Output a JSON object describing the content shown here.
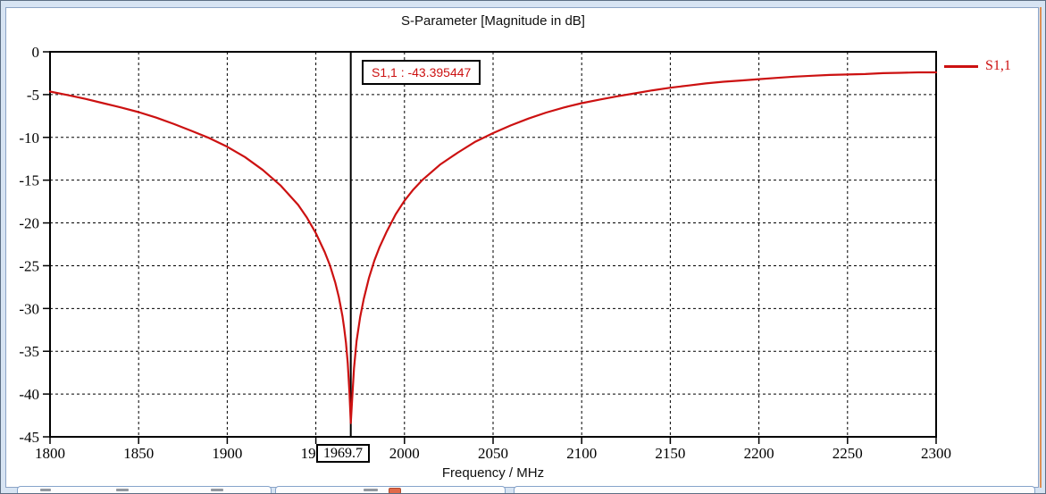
{
  "chart_data": {
    "type": "line",
    "title": "S-Parameter [Magnitude in dB]",
    "xlabel": "Frequency / MHz",
    "ylabel": "",
    "xlim": [
      1800,
      2300
    ],
    "ylim": [
      -45,
      0
    ],
    "grid": true,
    "legend_position": "right",
    "x_ticks": [
      "1800",
      "1850",
      "1900",
      "1950",
      "2000",
      "2050",
      "2100",
      "2150",
      "2200",
      "2250",
      "2300"
    ],
    "y_ticks": [
      "0",
      "-5",
      "-10",
      "-15",
      "-20",
      "-25",
      "-30",
      "-35",
      "-40",
      "-45"
    ],
    "series": [
      {
        "name": "S1,1",
        "color": "#cc1111",
        "points": [
          [
            1800,
            -4.65
          ],
          [
            1810,
            -5.05
          ],
          [
            1820,
            -5.5
          ],
          [
            1830,
            -6.0
          ],
          [
            1840,
            -6.5
          ],
          [
            1850,
            -7.05
          ],
          [
            1860,
            -7.7
          ],
          [
            1870,
            -8.45
          ],
          [
            1880,
            -9.25
          ],
          [
            1890,
            -10.1
          ],
          [
            1900,
            -11.1
          ],
          [
            1910,
            -12.3
          ],
          [
            1920,
            -13.8
          ],
          [
            1930,
            -15.6
          ],
          [
            1940,
            -17.9
          ],
          [
            1945,
            -19.4
          ],
          [
            1950,
            -21.2
          ],
          [
            1955,
            -23.4
          ],
          [
            1958,
            -25.0
          ],
          [
            1961,
            -27.0
          ],
          [
            1963,
            -28.7
          ],
          [
            1965,
            -30.9
          ],
          [
            1966,
            -32.3
          ],
          [
            1967,
            -34.0
          ],
          [
            1968,
            -36.4
          ],
          [
            1969,
            -40.0
          ],
          [
            1969.7,
            -43.395447
          ],
          [
            1970.5,
            -40.5
          ],
          [
            1971.5,
            -37.0
          ],
          [
            1973,
            -33.8
          ],
          [
            1975,
            -31.0
          ],
          [
            1977,
            -28.9
          ],
          [
            1980,
            -26.4
          ],
          [
            1983,
            -24.4
          ],
          [
            1986,
            -22.8
          ],
          [
            1990,
            -21.0
          ],
          [
            1995,
            -19.0
          ],
          [
            2000,
            -17.4
          ],
          [
            2005,
            -16.1
          ],
          [
            2010,
            -15.0
          ],
          [
            2020,
            -13.2
          ],
          [
            2030,
            -11.8
          ],
          [
            2040,
            -10.5
          ],
          [
            2050,
            -9.5
          ],
          [
            2060,
            -8.6
          ],
          [
            2070,
            -7.8
          ],
          [
            2080,
            -7.1
          ],
          [
            2090,
            -6.5
          ],
          [
            2100,
            -6.0
          ],
          [
            2110,
            -5.6
          ],
          [
            2120,
            -5.2
          ],
          [
            2130,
            -4.85
          ],
          [
            2140,
            -4.5
          ],
          [
            2150,
            -4.2
          ],
          [
            2160,
            -3.95
          ],
          [
            2170,
            -3.7
          ],
          [
            2180,
            -3.5
          ],
          [
            2190,
            -3.35
          ],
          [
            2200,
            -3.2
          ],
          [
            2210,
            -3.05
          ],
          [
            2220,
            -2.9
          ],
          [
            2230,
            -2.8
          ],
          [
            2240,
            -2.7
          ],
          [
            2250,
            -2.65
          ],
          [
            2260,
            -2.6
          ],
          [
            2270,
            -2.5
          ],
          [
            2280,
            -2.45
          ],
          [
            2290,
            -2.4
          ],
          [
            2300,
            -2.4
          ]
        ]
      }
    ],
    "marker": {
      "frequency": 1969.7,
      "frequency_label": "1969.7",
      "label": "S1,1 : -43.395447",
      "value_db": -43.395447
    }
  },
  "legend": {
    "label": "S1,1"
  }
}
